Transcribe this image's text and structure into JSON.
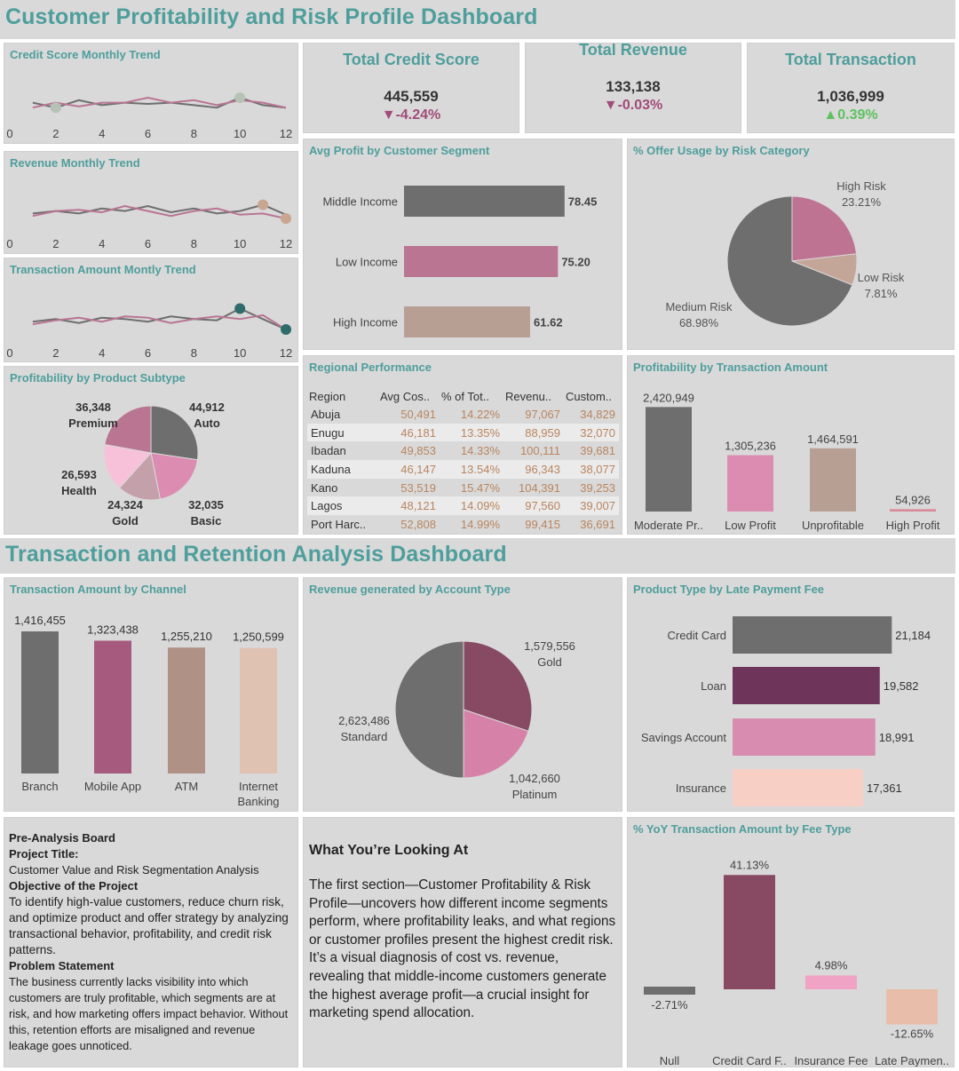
{
  "header1": {
    "title": "Customer Profitability and Risk Profile Dashboard"
  },
  "header2": {
    "title": "Transaction and Retention Analysis Dashboard"
  },
  "colors": {
    "teal": "#4e9e9c",
    "dark_gray": "#6e6e6e",
    "mauve": "#b97592",
    "tan": "#b89f94",
    "pink": "#dd8cb1",
    "light_pink": "#f7c1d9",
    "down": "#a14b78",
    "up": "#5ec15e"
  },
  "kpis": [
    {
      "title": "Total Credit Score",
      "value": "445,559",
      "delta": "▼-4.24%",
      "direction": "down"
    },
    {
      "title": "Total Revenue",
      "value": "133,138",
      "delta": "▼-0.03%",
      "direction": "down"
    },
    {
      "title": "Total Transaction",
      "value": "1,036,999",
      "delta": "▲0.39%",
      "direction": "up"
    }
  ],
  "sparklines": [
    {
      "title": "Credit Score Monthly Trend",
      "highlight_color": "#b7c2b7"
    },
    {
      "title": "Revenue Monthly Trend",
      "highlight_color": "#c9a690"
    },
    {
      "title": "Transaction Amount Montly Trend",
      "highlight_color": "#2f6b6a"
    }
  ],
  "spark_axis": {
    "ticks": [
      "0",
      "2",
      "4",
      "6",
      "8",
      "10",
      "12"
    ]
  },
  "avg_profit": {
    "title": "Avg Profit by Customer Segment"
  },
  "offer_usage": {
    "title": "% Offer Usage by Risk Category"
  },
  "product_subtype": {
    "title": "Profitability by Product Subtype"
  },
  "regional": {
    "title": "Regional Performance",
    "columns": [
      "Region",
      "Avg Cos..",
      "% of Tot..",
      "Revenu..",
      "Custom.."
    ],
    "rows": [
      [
        "Abuja",
        "50,491",
        "14.22%",
        "97,067",
        "34,829"
      ],
      [
        "Enugu",
        "46,181",
        "13.35%",
        "88,959",
        "32,070"
      ],
      [
        "Ibadan",
        "49,853",
        "14.33%",
        "100,111",
        "39,681"
      ],
      [
        "Kaduna",
        "46,147",
        "13.54%",
        "96,343",
        "38,077"
      ],
      [
        "Kano",
        "53,519",
        "15.47%",
        "104,391",
        "39,253"
      ],
      [
        "Lagos",
        "48,121",
        "14.09%",
        "97,560",
        "39,007"
      ],
      [
        "Port Harc..",
        "52,808",
        "14.99%",
        "99,415",
        "36,691"
      ]
    ]
  },
  "profit_txn": {
    "title": "Profitability by Transaction Amount"
  },
  "channel": {
    "title": "Transaction Amount by Channel"
  },
  "account_type": {
    "title": "Revenue generated by Account Type"
  },
  "late_fee": {
    "title": "Product Type by Late Payment Fee"
  },
  "yoy_fee": {
    "title": "% YoY Transaction Amount by Fee Type"
  },
  "notes": {
    "heading": "Pre-Analysis Board",
    "project_label": "Project Title:",
    "project": "Customer Value and Risk Segmentation Analysis",
    "objective_label": "Objective of the Project",
    "objective": "To identify high-value customers, reduce churn risk, and optimize product and offer strategy by analyzing transactional behavior, profitability, and credit risk patterns.",
    "problem_label": "Problem Statement",
    "problem": "The business currently lacks visibility into which customers are truly profitable, which segments are at risk, and how marketing offers impact behavior. Without this, retention efforts are misaligned and revenue leakage goes unnoticed."
  },
  "explain": {
    "title": "What You’re Looking At",
    "body": "The first section—Customer Profitability & Risk Profile—uncovers how different income segments perform, where profitability leaks, and what regions or customer profiles present the highest credit risk. It’s a visual diagnosis of cost vs. revenue, revealing that middle-income customers generate the highest average profit—a crucial insight for marketing spend allocation."
  },
  "chart_data": [
    {
      "type": "line",
      "name": "credit_trend",
      "title": "Credit Score Monthly Trend",
      "x": [
        1,
        2,
        3,
        4,
        5,
        6,
        7,
        8,
        9,
        10,
        11,
        12
      ],
      "xlim": [
        0,
        12.5
      ],
      "series": [
        {
          "values": [
            38.4,
            36.0,
            39.6,
            37.2,
            38.4,
            37.8,
            38.4,
            37.2,
            36.0,
            40.8,
            37.2,
            36.0
          ]
        },
        {
          "values": [
            36.0,
            38.4,
            36.6,
            38.4,
            38.4,
            40.8,
            38.4,
            39.6,
            37.2,
            39.6,
            38.4,
            36.0
          ]
        }
      ],
      "highlight": [
        {
          "x": 2,
          "y": 36.0
        },
        {
          "x": 10,
          "y": 40.8
        }
      ],
      "ylim": [
        24,
        54
      ]
    },
    {
      "type": "line",
      "name": "revenue_trend",
      "title": "Revenue Monthly Trend",
      "x": [
        1,
        2,
        3,
        4,
        5,
        6,
        7,
        8,
        9,
        10,
        11,
        12
      ],
      "xlim": [
        0,
        12.5
      ],
      "series": [
        {
          "values": [
            37.2,
            38.4,
            37.2,
            39.6,
            38.4,
            40.8,
            37.8,
            39.6,
            37.2,
            38.4,
            41.4,
            36.6
          ]
        },
        {
          "values": [
            36.0,
            38.4,
            39.0,
            37.8,
            40.8,
            38.4,
            36.0,
            38.4,
            39.6,
            36.6,
            37.2,
            34.8
          ]
        }
      ],
      "highlight": [
        {
          "x": 11,
          "y": 41.4
        },
        {
          "x": 12,
          "y": 34.8
        }
      ],
      "ylim": [
        24,
        54
      ]
    },
    {
      "type": "line",
      "name": "transaction_trend",
      "title": "Transaction Amount Montly Trend",
      "x": [
        1,
        2,
        3,
        4,
        5,
        6,
        7,
        8,
        9,
        10,
        11,
        12
      ],
      "xlim": [
        0,
        12.5
      ],
      "series": [
        {
          "values": [
            37.2,
            38.4,
            36.6,
            39.0,
            38.4,
            37.2,
            39.6,
            38.4,
            37.8,
            43.2,
            38.4,
            33.6
          ]
        },
        {
          "values": [
            36.0,
            37.8,
            39.0,
            37.2,
            39.6,
            39.0,
            36.6,
            38.4,
            39.6,
            38.4,
            40.2,
            33.6
          ]
        }
      ],
      "highlight": [
        {
          "x": 10,
          "y": 43.2
        },
        {
          "x": 12,
          "y": 33.6
        }
      ],
      "ylim": [
        24,
        54
      ]
    },
    {
      "type": "bar",
      "orientation": "horizontal",
      "name": "avg_profit",
      "title": "Avg Profit by Customer Segment",
      "categories": [
        "Middle Income",
        "Low Income",
        "High Income"
      ],
      "values": [
        78.45,
        75.2,
        61.62
      ],
      "labels": [
        "78.45",
        "75.20",
        "61.62"
      ],
      "colors": [
        "#6e6e6e",
        "#b97592",
        "#b89f94"
      ],
      "xlim": [
        0,
        105
      ]
    },
    {
      "type": "pie",
      "name": "offer_usage",
      "title": "% Offer Usage by Risk Category",
      "categories": [
        "High Risk",
        "Low Risk",
        "Medium Risk"
      ],
      "values": [
        23.21,
        7.81,
        68.98
      ],
      "labels": [
        "23.21%",
        "7.81%",
        "68.98%"
      ],
      "colors": [
        "#bf7393",
        "#c4a699",
        "#6e6e6e"
      ]
    },
    {
      "type": "pie",
      "name": "product_subtype",
      "title": "Profitability by Product Subtype",
      "categories": [
        "Auto",
        "Basic",
        "Gold",
        "Health",
        "Premium"
      ],
      "values": [
        44912,
        32035,
        24324,
        26593,
        36348
      ],
      "labels": [
        "44,912",
        "32,035",
        "24,324",
        "26,593",
        "36,348"
      ],
      "colors": [
        "#6e6e6e",
        "#dd8cb1",
        "#c4a0aa",
        "#f7c1d9",
        "#b97592"
      ]
    },
    {
      "type": "bar",
      "name": "profit_txn",
      "title": "Profitability by Transaction Amount",
      "categories": [
        "Moderate Pr..",
        "Low Profit",
        "Unprofitable",
        "High Profit"
      ],
      "values": [
        2420949,
        1305236,
        1464591,
        54926
      ],
      "labels": [
        "2,420,949",
        "1,305,236",
        "1,464,591",
        "54,926"
      ],
      "colors": [
        "#6e6e6e",
        "#dd8cb1",
        "#b89f94",
        "#d98a9a"
      ],
      "ylim": [
        0,
        2860000
      ]
    },
    {
      "type": "bar",
      "name": "channel",
      "title": "Transaction Amount by Channel",
      "categories": [
        "Branch",
        "Mobile App",
        "ATM",
        "Internet Banking"
      ],
      "values": [
        1416455,
        1323438,
        1255210,
        1250599
      ],
      "labels": [
        "1,416,455",
        "1,323,438",
        "1,255,210",
        "1,250,599"
      ],
      "colors": [
        "#6e6e6e",
        "#a65a7d",
        "#b09185",
        "#dfc2b2"
      ],
      "ylim": [
        0,
        1540000
      ]
    },
    {
      "type": "pie",
      "name": "account_type",
      "title": "Revenue generated by Account Type",
      "categories": [
        "Gold",
        "Platinum",
        "Standard"
      ],
      "values": [
        1579556,
        1042660,
        2623486
      ],
      "labels": [
        "1,579,556",
        "1,042,660",
        "2,623,486"
      ],
      "colors": [
        "#874a62",
        "#d681a8",
        "#6e6e6e"
      ]
    },
    {
      "type": "bar",
      "orientation": "horizontal",
      "name": "late_fee",
      "title": "Product Type by Late Payment Fee",
      "categories": [
        "Credit Card",
        "Loan",
        "Savings Account",
        "Insurance"
      ],
      "values": [
        21184,
        19582,
        18991,
        17361
      ],
      "labels": [
        "21,184",
        "19,582",
        "18,991",
        "17,361"
      ],
      "colors": [
        "#6e6e6e",
        "#6f3459",
        "#d88db0",
        "#f7cfc5"
      ],
      "xlim": [
        0,
        28000
      ]
    },
    {
      "type": "bar",
      "name": "yoy_fee",
      "title": "% YoY Transaction Amount by Fee Type",
      "categories": [
        "Null",
        "Credit Card F..",
        "Insurance Fee",
        "Late Paymen.."
      ],
      "values": [
        -2.71,
        41.13,
        4.98,
        -12.65
      ],
      "labels": [
        "-2.71%",
        "41.13%",
        "4.98%",
        "-12.65%"
      ],
      "colors": [
        "#6e6e6e",
        "#874a62",
        "#f0a3c4",
        "#e8bda9"
      ],
      "ylim": [
        -16,
        44
      ]
    }
  ]
}
